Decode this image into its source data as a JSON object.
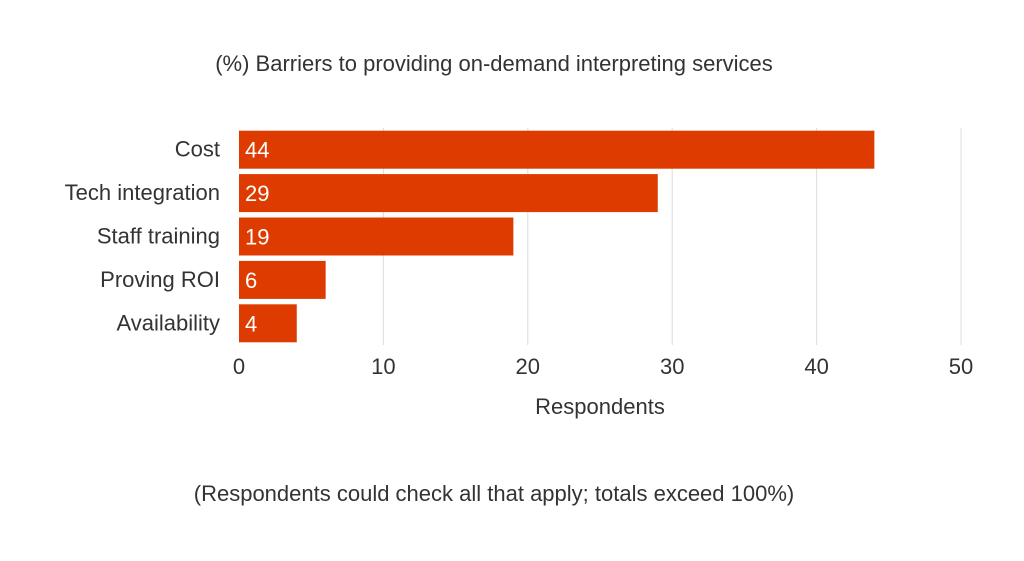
{
  "chart_data": {
    "type": "bar",
    "orientation": "horizontal",
    "title": "(%) Barriers to providing on-demand interpreting services",
    "categories": [
      "Cost",
      "Tech integration",
      "Staff training",
      "Proving ROI",
      "Availability"
    ],
    "values": [
      44,
      29,
      19,
      6,
      4
    ],
    "xlabel": "Respondents",
    "ylabel": "",
    "xlim": [
      0,
      50
    ],
    "xticks": [
      "0",
      "10",
      "20",
      "30",
      "40",
      "50"
    ],
    "grid": true,
    "data_labels": true,
    "bar_color": "#dd3b00",
    "footnote": "(Respondents could check all that apply; totals exceed 100%)"
  }
}
